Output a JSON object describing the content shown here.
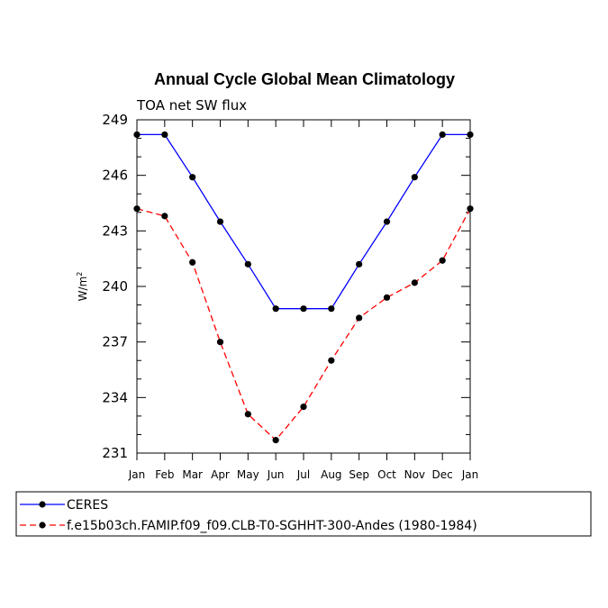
{
  "chart_data": {
    "type": "line",
    "title": "Annual Cycle Global Mean Climatology",
    "subtitle": "TOA net SW flux",
    "xlabel": "",
    "ylabel": "W/m",
    "ylabel_sup": "2",
    "categories": [
      "Jan",
      "Feb",
      "Mar",
      "Apr",
      "May",
      "Jun",
      "Jul",
      "Aug",
      "Sep",
      "Oct",
      "Nov",
      "Dec",
      "Jan"
    ],
    "ylim": [
      231,
      249
    ],
    "yticks": [
      231,
      234,
      237,
      240,
      243,
      246,
      249
    ],
    "series": [
      {
        "name": "CERES",
        "color": "#0000ff",
        "dash": "solid",
        "values": [
          248.2,
          248.2,
          245.9,
          243.5,
          241.2,
          238.8,
          238.8,
          238.8,
          241.2,
          243.5,
          245.9,
          248.2,
          248.2
        ]
      },
      {
        "name": "f.e15b03ch.FAMIP.f09_f09.CLB-T0-SGHHT-300-Andes (1980-1984)",
        "color": "#ff0000",
        "dash": "dashed",
        "values": [
          244.2,
          243.8,
          241.3,
          237.0,
          233.1,
          231.7,
          233.5,
          236.0,
          238.3,
          239.4,
          240.2,
          241.4,
          244.2
        ]
      }
    ],
    "legend_position": "bottom"
  }
}
